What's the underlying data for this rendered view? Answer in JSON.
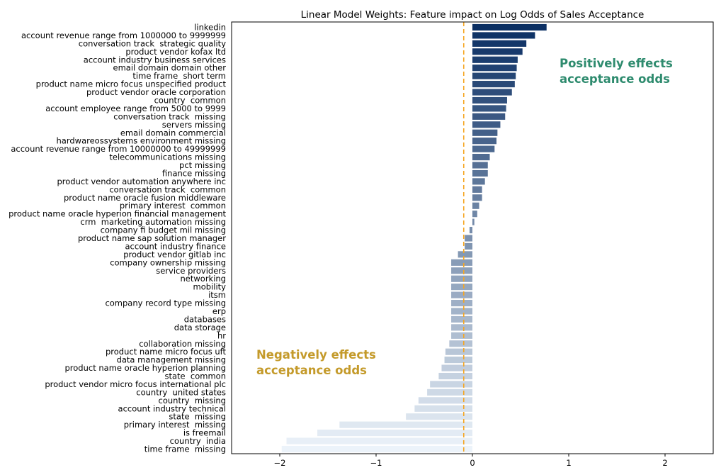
{
  "chart_data": {
    "type": "bar",
    "orientation": "horizontal",
    "title": "Linear Model Weights: Feature impact on Log Odds of Sales Acceptance",
    "xlabel": "",
    "ylabel": "",
    "xlim": [
      -2.5,
      2.5
    ],
    "xticks": [
      -2,
      -1,
      0,
      1,
      2
    ],
    "xtick_labels": [
      "−2",
      "−1",
      "0",
      "1",
      "2"
    ],
    "grid": false,
    "reference_line": {
      "x": -0.09,
      "color": "#f5a623",
      "style": "dashed"
    },
    "categories": [
      "linkedin",
      "account revenue range from 1000000 to 9999999",
      "conversation track  strategic quality",
      "product vendor kofax ltd",
      "account industry business services",
      "email domain domain other",
      "time frame  short term",
      "product name micro focus unspecified product",
      "product vendor oracle corporation",
      "country  common",
      "account employee range from 5000 to 9999",
      "conversation track  missing",
      "servers missing",
      "email domain commercial",
      "hardwareossystems environment missing",
      "account revenue range from 10000000 to 49999999",
      "telecommunications missing",
      "pct missing",
      "finance missing",
      "product vendor automation anywhere inc",
      "conversation track  common",
      "product name oracle fusion middleware",
      "primary interest  common",
      "product name oracle hyperion financial management",
      "crm  marketing automation missing",
      "company fi budget mil missing",
      "product name sap solution manager",
      "account industry finance",
      "product vendor gitlab inc",
      "company ownership missing",
      "service providers",
      "networking",
      "mobility",
      "itsm",
      "company record type missing",
      "erp",
      "databases",
      "data storage",
      "hr",
      "collaboration missing",
      "product name micro focus uft",
      "data management missing",
      "product name oracle hyperion planning",
      "state  common",
      "product vendor micro focus international plc",
      "country  united states",
      "country  missing",
      "account industry technical",
      "state  missing",
      "primary interest  missing",
      "is freemail",
      "country  india",
      "time frame  missing"
    ],
    "values": [
      0.77,
      0.65,
      0.56,
      0.52,
      0.47,
      0.46,
      0.45,
      0.44,
      0.41,
      0.36,
      0.35,
      0.34,
      0.29,
      0.26,
      0.25,
      0.23,
      0.18,
      0.16,
      0.16,
      0.13,
      0.1,
      0.1,
      0.07,
      0.05,
      0.02,
      -0.03,
      -0.08,
      -0.08,
      -0.15,
      -0.22,
      -0.22,
      -0.22,
      -0.22,
      -0.22,
      -0.22,
      -0.22,
      -0.22,
      -0.22,
      -0.22,
      -0.24,
      -0.28,
      -0.29,
      -0.32,
      -0.35,
      -0.44,
      -0.47,
      -0.56,
      -0.6,
      -0.69,
      -1.38,
      -1.61,
      -1.93,
      -1.98
    ],
    "annotations": [
      {
        "text": "Positively effects\nacceptance odds",
        "color": "#2e8b6e",
        "position": "upper-right"
      },
      {
        "text": "Negatively effects\nacceptance odds",
        "color": "#c49a2a",
        "position": "lower-left"
      }
    ],
    "colormap": {
      "start": "#0b2f63",
      "end": "#ecf3fa"
    }
  }
}
